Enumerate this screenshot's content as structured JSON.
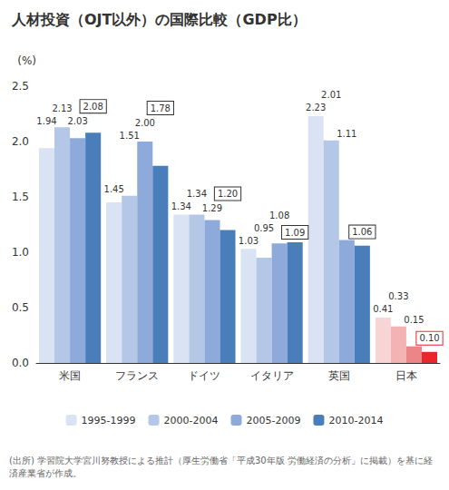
{
  "chart_data": {
    "type": "bar",
    "title": "人材投資（OJT以外）の国際比較（GDP比）",
    "y_label": "(%)",
    "annotations": [
      "(出所) 学習院大学宮川努教授による推計（厚生労働省「平成30年版 労働経済の分析」に掲載）を基に経済産業省が作成。"
    ],
    "categories": [
      "米国",
      "フランス",
      "ドイツ",
      "イタリア",
      "英国",
      "日本"
    ],
    "series": [
      {
        "name": "1995-1999",
        "color": "#dae3f3",
        "colors": [
          "#dae3f3",
          "#dae3f3",
          "#dae3f3",
          "#dae3f3",
          "#dae3f3",
          "#f8d5d5"
        ],
        "values": [
          1.94,
          1.45,
          1.34,
          1.03,
          2.23,
          0.41
        ],
        "value_labels": [
          "1.94",
          "1.45",
          "1.34",
          "1.03",
          "2.23",
          "0.41"
        ]
      },
      {
        "name": "2000-2004",
        "color": "#b4c7e7",
        "colors": [
          "#b4c7e7",
          "#b4c7e7",
          "#b4c7e7",
          "#b4c7e7",
          "#b4c7e7",
          "#f3b3b3"
        ],
        "values": [
          2.13,
          1.51,
          1.34,
          0.95,
          2.01,
          0.33
        ],
        "value_labels": [
          "2.13",
          "1.51",
          "1.34",
          "0.95",
          "2.01",
          "0.33"
        ]
      },
      {
        "name": "2005-2009",
        "color": "#8eaadb",
        "colors": [
          "#8eaadb",
          "#8eaadb",
          "#8eaadb",
          "#8eaadb",
          "#8eaadb",
          "#ec8585"
        ],
        "values": [
          2.03,
          2.0,
          1.29,
          1.08,
          1.11,
          0.15
        ],
        "value_labels": [
          "2.03",
          "2.00",
          "1.29",
          "1.08",
          "1.11",
          "0.15"
        ]
      },
      {
        "name": "2010-2014",
        "color": "#4a7ebb",
        "colors": [
          "#4a7ebb",
          "#4a7ebb",
          "#4a7ebb",
          "#4a7ebb",
          "#4a7ebb",
          "#e8262b"
        ],
        "values": [
          2.08,
          1.78,
          1.2,
          1.09,
          1.06,
          0.1
        ],
        "value_labels": [
          "2.08",
          "1.78",
          "1.20",
          "1.09",
          "1.06",
          "0.10"
        ]
      }
    ],
    "ylim": [
      0,
      2.5
    ],
    "yticks": [
      {
        "value": 0,
        "label": "0.0"
      },
      0.5,
      {
        "value": 1,
        "label": "1.0"
      },
      1.5,
      {
        "value": 2,
        "label": "2.0"
      },
      2.5
    ],
    "grid": false,
    "legend": "bottom",
    "data_labels": true
  }
}
